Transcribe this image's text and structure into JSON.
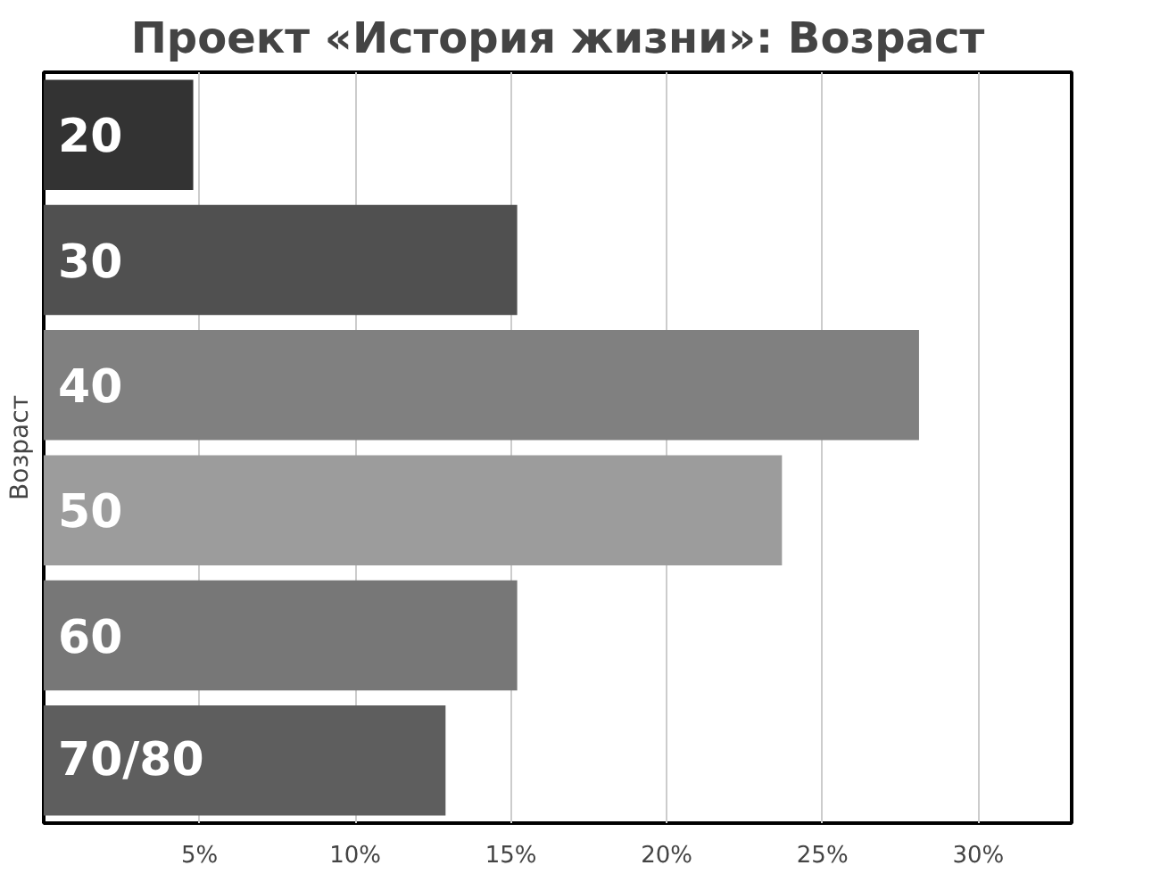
{
  "chart_data": {
    "type": "bar",
    "orientation": "horizontal",
    "title": "Проект «История жизни»: Возраст",
    "ylabel": "Возраст",
    "categories": [
      "20",
      "30",
      "40",
      "50",
      "60",
      "70/80"
    ],
    "values": [
      4.8,
      15.2,
      28.1,
      23.7,
      15.2,
      12.9
    ],
    "colors": [
      "#333333",
      "#505050",
      "#808080",
      "#9c9c9c",
      "#777777",
      "#5e5e5e"
    ],
    "xlim": [
      0,
      33
    ],
    "xticks": [
      {
        "value": 5,
        "label": "5%"
      },
      {
        "value": 10,
        "label": "10%"
      },
      {
        "value": 15,
        "label": "15%"
      },
      {
        "value": 20,
        "label": "20%"
      },
      {
        "value": 25,
        "label": "25%"
      },
      {
        "value": 30,
        "label": "30%"
      }
    ],
    "grid": "x"
  }
}
